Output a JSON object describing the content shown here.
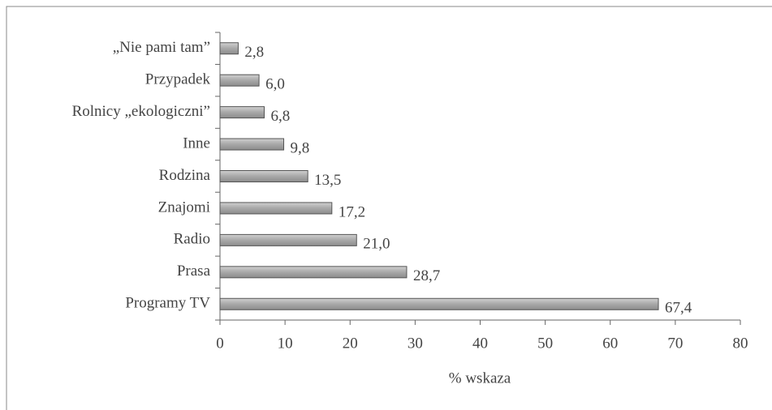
{
  "chart_data": {
    "type": "bar",
    "orientation": "horizontal",
    "categories": [
      "„Nie pami tam”",
      "Przypadek",
      "Rolnicy „ekologiczni”",
      "Inne",
      "Rodzina",
      "Znajomi",
      "Radio",
      "Prasa",
      "Programy TV"
    ],
    "values": [
      2.8,
      6.0,
      6.8,
      9.8,
      13.5,
      17.2,
      21.0,
      28.7,
      67.4
    ],
    "value_labels": [
      "2,8",
      "6,0",
      "6,8",
      "9,8",
      "13,5",
      "17,2",
      "21,0",
      "28,7",
      "67,4"
    ],
    "color": "#b0b0b0",
    "xlabel": "% wskaza",
    "xlim": [
      0,
      80
    ],
    "xticks": [
      0,
      10,
      20,
      30,
      40,
      50,
      60,
      70,
      80
    ]
  }
}
